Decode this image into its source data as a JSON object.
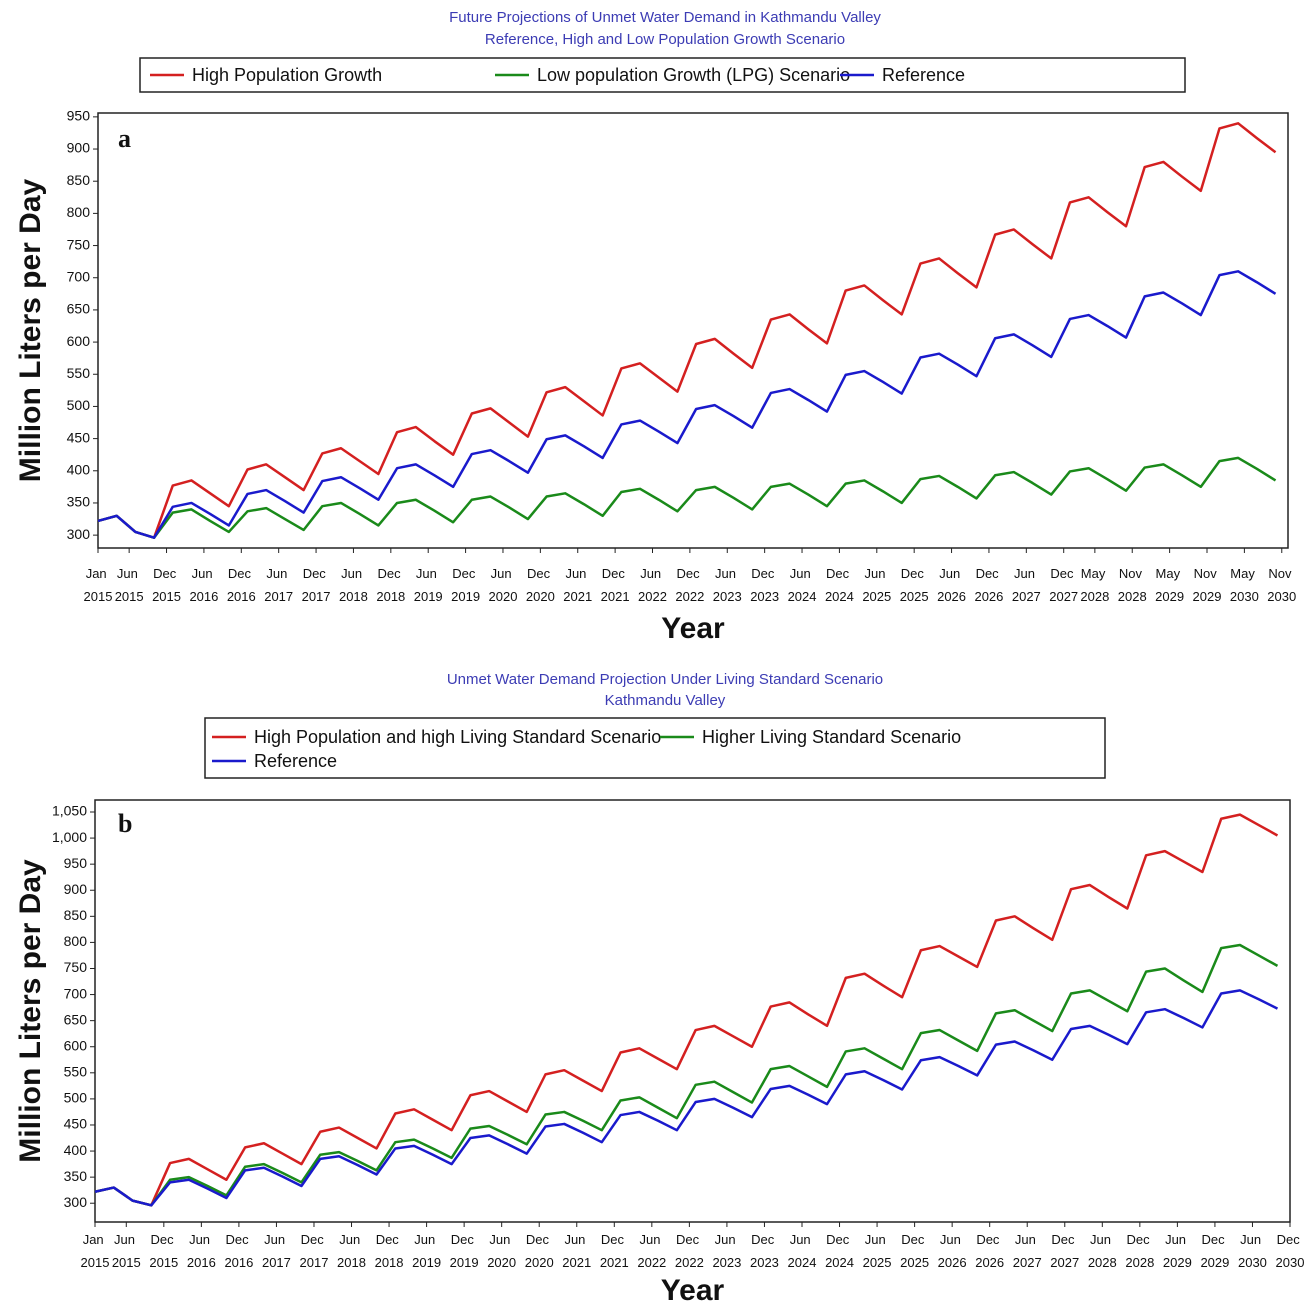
{
  "chart_data": [
    {
      "type": "line",
      "title": "Future Projections of Unmet Water Demand in Kathmandu Valley",
      "subtitle": "Reference, High and Low Population Growth Scenario",
      "panel_label": "a",
      "y_label": "Million Liters per Day",
      "x_label": "Year",
      "x": [
        "2015-01",
        "2015-04",
        "2015-07",
        "2015-10",
        "2016-01",
        "2016-04",
        "2016-07",
        "2016-10",
        "2017-01",
        "2017-04",
        "2017-07",
        "2017-10",
        "2018-01",
        "2018-04",
        "2018-07",
        "2018-10",
        "2019-01",
        "2019-04",
        "2019-07",
        "2019-10",
        "2020-01",
        "2020-04",
        "2020-07",
        "2020-10",
        "2021-01",
        "2021-04",
        "2021-07",
        "2021-10",
        "2022-01",
        "2022-04",
        "2022-07",
        "2022-10",
        "2023-01",
        "2023-04",
        "2023-07",
        "2023-10",
        "2024-01",
        "2024-04",
        "2024-07",
        "2024-10",
        "2025-01",
        "2025-04",
        "2025-07",
        "2025-10",
        "2026-01",
        "2026-04",
        "2026-07",
        "2026-10",
        "2027-01",
        "2027-04",
        "2027-07",
        "2027-10",
        "2028-01",
        "2028-04",
        "2028-07",
        "2028-10",
        "2029-01",
        "2029-04",
        "2029-07",
        "2029-10",
        "2030-01",
        "2030-04",
        "2030-07",
        "2030-10"
      ],
      "xlim": [
        "2015-01",
        "2030-12"
      ],
      "xticks": [
        {
          "value": "2015-01",
          "label": "Jan 2015"
        },
        {
          "value": "2015-06",
          "label": "Jun 2015"
        },
        {
          "value": "2015-12",
          "label": "Dec 2015"
        },
        {
          "value": "2016-06",
          "label": "Jun 2016"
        },
        {
          "value": "2016-12",
          "label": "Dec 2016"
        },
        {
          "value": "2017-06",
          "label": "Jun 2017"
        },
        {
          "value": "2017-12",
          "label": "Dec 2017"
        },
        {
          "value": "2018-06",
          "label": "Jun 2018"
        },
        {
          "value": "2018-12",
          "label": "Dec 2018"
        },
        {
          "value": "2019-06",
          "label": "Jun 2019"
        },
        {
          "value": "2019-12",
          "label": "Dec 2019"
        },
        {
          "value": "2020-06",
          "label": "Jun 2020"
        },
        {
          "value": "2020-12",
          "label": "Dec 2020"
        },
        {
          "value": "2021-06",
          "label": "Jun 2021"
        },
        {
          "value": "2021-12",
          "label": "Dec 2021"
        },
        {
          "value": "2022-06",
          "label": "Jun 2022"
        },
        {
          "value": "2022-12",
          "label": "Dec 2022"
        },
        {
          "value": "2023-06",
          "label": "Jun 2023"
        },
        {
          "value": "2023-12",
          "label": "Dec 2023"
        },
        {
          "value": "2024-06",
          "label": "Jun 2024"
        },
        {
          "value": "2024-12",
          "label": "Dec 2024"
        },
        {
          "value": "2025-06",
          "label": "Jun 2025"
        },
        {
          "value": "2025-12",
          "label": "Dec 2025"
        },
        {
          "value": "2026-06",
          "label": "Jun 2026"
        },
        {
          "value": "2026-12",
          "label": "Dec 2026"
        },
        {
          "value": "2027-06",
          "label": "Jun 2027"
        },
        {
          "value": "2027-12",
          "label": "Dec 2027"
        },
        {
          "value": "2028-05",
          "label": "May 2028"
        },
        {
          "value": "2028-11",
          "label": "Nov 2028"
        },
        {
          "value": "2029-05",
          "label": "May 2029"
        },
        {
          "value": "2029-11",
          "label": "Nov 2029"
        },
        {
          "value": "2030-05",
          "label": "May 2030"
        },
        {
          "value": "2030-11",
          "label": "Nov 2030"
        }
      ],
      "ylim": [
        280,
        956
      ],
      "yticks": [
        300,
        350,
        400,
        450,
        500,
        550,
        600,
        650,
        700,
        750,
        800,
        850,
        900,
        950
      ],
      "series": [
        {
          "name": "High Population Growth",
          "color": "#d42020",
          "values": [
            322,
            330,
            305,
            296,
            377,
            385,
            365,
            345,
            402,
            410,
            390,
            370,
            427,
            435,
            415,
            395,
            460,
            468,
            446,
            425,
            489,
            497,
            475,
            453,
            522,
            530,
            508,
            486,
            559,
            567,
            545,
            523,
            597,
            605,
            582,
            560,
            635,
            643,
            620,
            598,
            680,
            688,
            665,
            643,
            722,
            730,
            707,
            685,
            767,
            775,
            752,
            730,
            817,
            825,
            802,
            780,
            872,
            880,
            857,
            835,
            932,
            940,
            917,
            895
          ]
        },
        {
          "name": "Low population Growth (LPG) Scenario",
          "color": "#1a8a1a",
          "values": [
            322,
            330,
            305,
            296,
            335,
            340,
            322,
            305,
            337,
            342,
            325,
            308,
            345,
            350,
            333,
            315,
            350,
            355,
            338,
            320,
            355,
            360,
            343,
            325,
            360,
            365,
            348,
            330,
            367,
            372,
            355,
            337,
            370,
            375,
            358,
            340,
            375,
            380,
            363,
            345,
            380,
            385,
            368,
            350,
            387,
            392,
            375,
            357,
            393,
            398,
            381,
            363,
            399,
            404,
            387,
            369,
            405,
            410,
            393,
            375,
            415,
            420,
            403,
            385
          ]
        },
        {
          "name": "Reference",
          "color": "#1a1acc",
          "values": [
            322,
            330,
            305,
            296,
            344,
            350,
            333,
            315,
            364,
            370,
            353,
            335,
            384,
            390,
            373,
            355,
            404,
            410,
            393,
            375,
            426,
            432,
            415,
            397,
            449,
            455,
            438,
            420,
            472,
            478,
            461,
            443,
            496,
            502,
            485,
            467,
            521,
            527,
            510,
            492,
            549,
            555,
            538,
            520,
            576,
            582,
            565,
            547,
            606,
            612,
            595,
            577,
            636,
            642,
            625,
            607,
            671,
            677,
            660,
            642,
            704,
            710,
            693,
            675
          ]
        }
      ]
    },
    {
      "type": "line",
      "title": "Unmet Water Demand Projection Under Living Standard Scenario",
      "subtitle": "Kathmandu Valley",
      "panel_label": "b",
      "y_label": "Million Liters per Day",
      "x_label": "Year",
      "x": [
        "2015-01",
        "2015-04",
        "2015-07",
        "2015-10",
        "2016-01",
        "2016-04",
        "2016-07",
        "2016-10",
        "2017-01",
        "2017-04",
        "2017-07",
        "2017-10",
        "2018-01",
        "2018-04",
        "2018-07",
        "2018-10",
        "2019-01",
        "2019-04",
        "2019-07",
        "2019-10",
        "2020-01",
        "2020-04",
        "2020-07",
        "2020-10",
        "2021-01",
        "2021-04",
        "2021-07",
        "2021-10",
        "2022-01",
        "2022-04",
        "2022-07",
        "2022-10",
        "2023-01",
        "2023-04",
        "2023-07",
        "2023-10",
        "2024-01",
        "2024-04",
        "2024-07",
        "2024-10",
        "2025-01",
        "2025-04",
        "2025-07",
        "2025-10",
        "2026-01",
        "2026-04",
        "2026-07",
        "2026-10",
        "2027-01",
        "2027-04",
        "2027-07",
        "2027-10",
        "2028-01",
        "2028-04",
        "2028-07",
        "2028-10",
        "2029-01",
        "2029-04",
        "2029-07",
        "2029-10",
        "2030-01",
        "2030-04",
        "2030-07",
        "2030-10"
      ],
      "xlim": [
        "2015-01",
        "2030-12"
      ],
      "xticks": [
        {
          "value": "2015-01",
          "label": "Jan 2015"
        },
        {
          "value": "2015-06",
          "label": "Jun 2015"
        },
        {
          "value": "2015-12",
          "label": "Dec 2015"
        },
        {
          "value": "2016-06",
          "label": "Jun 2016"
        },
        {
          "value": "2016-12",
          "label": "Dec 2016"
        },
        {
          "value": "2017-06",
          "label": "Jun 2017"
        },
        {
          "value": "2017-12",
          "label": "Dec 2017"
        },
        {
          "value": "2018-06",
          "label": "Jun 2018"
        },
        {
          "value": "2018-12",
          "label": "Dec 2018"
        },
        {
          "value": "2019-06",
          "label": "Jun 2019"
        },
        {
          "value": "2019-12",
          "label": "Dec 2019"
        },
        {
          "value": "2020-06",
          "label": "Jun 2020"
        },
        {
          "value": "2020-12",
          "label": "Dec 2020"
        },
        {
          "value": "2021-06",
          "label": "Jun 2021"
        },
        {
          "value": "2021-12",
          "label": "Dec 2021"
        },
        {
          "value": "2022-06",
          "label": "Jun 2022"
        },
        {
          "value": "2022-12",
          "label": "Dec 2022"
        },
        {
          "value": "2023-06",
          "label": "Jun 2023"
        },
        {
          "value": "2023-12",
          "label": "Dec 2023"
        },
        {
          "value": "2024-06",
          "label": "Jun 2024"
        },
        {
          "value": "2024-12",
          "label": "Dec 2024"
        },
        {
          "value": "2025-06",
          "label": "Jun 2025"
        },
        {
          "value": "2025-12",
          "label": "Dec 2025"
        },
        {
          "value": "2026-06",
          "label": "Jun 2026"
        },
        {
          "value": "2026-12",
          "label": "Dec 2026"
        },
        {
          "value": "2027-06",
          "label": "Jun 2027"
        },
        {
          "value": "2027-12",
          "label": "Dec 2027"
        },
        {
          "value": "2028-06",
          "label": "Jun 2028"
        },
        {
          "value": "2028-12",
          "label": "Dec 2028"
        },
        {
          "value": "2029-06",
          "label": "Jun 2029"
        },
        {
          "value": "2029-12",
          "label": "Dec 2029"
        },
        {
          "value": "2030-06",
          "label": "Jun 2030"
        },
        {
          "value": "2030-12",
          "label": "Dec 2030"
        }
      ],
      "ylim": [
        264,
        1073
      ],
      "yticks": [
        300,
        350,
        400,
        450,
        500,
        550,
        600,
        650,
        700,
        750,
        800,
        850,
        900,
        950,
        {
          "value": 1000,
          "label": "1,000"
        },
        {
          "value": 1050,
          "label": "1,050"
        }
      ],
      "series": [
        {
          "name": "High Population and high Living Standard Scenario",
          "color": "#d42020",
          "values": [
            322,
            330,
            305,
            296,
            377,
            385,
            365,
            345,
            407,
            415,
            395,
            375,
            437,
            445,
            425,
            405,
            472,
            480,
            460,
            440,
            507,
            515,
            495,
            475,
            547,
            555,
            535,
            515,
            589,
            597,
            577,
            557,
            632,
            640,
            620,
            600,
            677,
            685,
            662,
            640,
            732,
            740,
            717,
            695,
            785,
            793,
            773,
            753,
            842,
            850,
            827,
            805,
            902,
            910,
            887,
            865,
            967,
            975,
            955,
            935,
            1037,
            1045,
            1025,
            1005
          ]
        },
        {
          "name": "Higher Living Standard Scenario",
          "color": "#1a8a1a",
          "values": [
            322,
            330,
            305,
            296,
            345,
            350,
            333,
            315,
            370,
            375,
            358,
            340,
            393,
            398,
            381,
            363,
            417,
            422,
            405,
            387,
            443,
            448,
            431,
            413,
            470,
            475,
            458,
            440,
            497,
            503,
            483,
            463,
            527,
            533,
            513,
            493,
            557,
            563,
            543,
            523,
            591,
            597,
            577,
            557,
            626,
            632,
            612,
            592,
            664,
            670,
            650,
            630,
            702,
            708,
            688,
            668,
            744,
            750,
            727,
            705,
            789,
            795,
            775,
            755
          ]
        },
        {
          "name": "Reference",
          "color": "#1a1acc",
          "values": [
            322,
            330,
            305,
            296,
            340,
            345,
            328,
            310,
            363,
            368,
            351,
            333,
            385,
            390,
            373,
            355,
            405,
            410,
            393,
            375,
            425,
            430,
            413,
            395,
            447,
            452,
            435,
            417,
            469,
            475,
            458,
            440,
            494,
            500,
            483,
            465,
            519,
            525,
            508,
            490,
            547,
            553,
            536,
            518,
            574,
            580,
            563,
            545,
            604,
            610,
            593,
            575,
            634,
            640,
            623,
            605,
            666,
            672,
            655,
            637,
            702,
            708,
            691,
            673
          ]
        }
      ]
    }
  ]
}
